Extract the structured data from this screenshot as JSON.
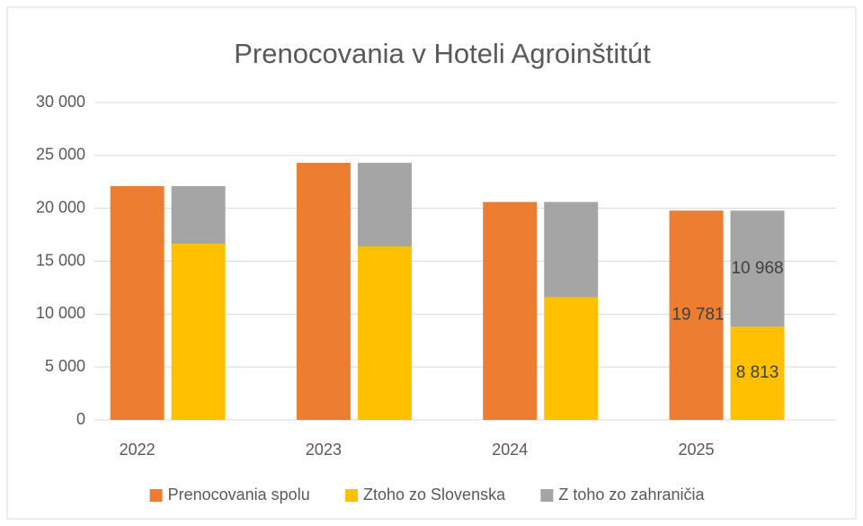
{
  "chart_data": {
    "type": "bar",
    "title": "Prenocovania v Hoteli Agroinštitút",
    "categories": [
      "2022",
      "2023",
      "2024",
      "2025"
    ],
    "series": [
      {
        "name": "Prenocovania spolu",
        "color": "#ed7d31",
        "stack": "spolu",
        "values": [
          22100,
          24300,
          20600,
          19781
        ],
        "value_labels": [
          null,
          null,
          null,
          "19 781"
        ]
      },
      {
        "name": "Ztoho zo Slovenska",
        "color": "#ffc000",
        "stack": "rozdelenie",
        "values": [
          16650,
          16400,
          11600,
          8813
        ],
        "value_labels": [
          null,
          null,
          null,
          "8 813"
        ]
      },
      {
        "name": "Z toho zo zahraničia",
        "color": "#a5a5a5",
        "stack": "rozdelenie",
        "values": [
          5450,
          7900,
          9000,
          10968
        ],
        "value_labels": [
          null,
          null,
          null,
          "10 968"
        ]
      }
    ],
    "ylim": [
      0,
      30000
    ],
    "yticks": [
      0,
      {
        "value": 5000,
        "label": "5 000"
      },
      {
        "value": 10000,
        "label": "10 000"
      },
      {
        "value": 15000,
        "label": "15 000"
      },
      {
        "value": 20000,
        "label": "20 000"
      },
      {
        "value": 25000,
        "label": "25 000"
      },
      {
        "value": 30000,
        "label": "30 000"
      }
    ],
    "grid": true,
    "legend": "bottom"
  }
}
